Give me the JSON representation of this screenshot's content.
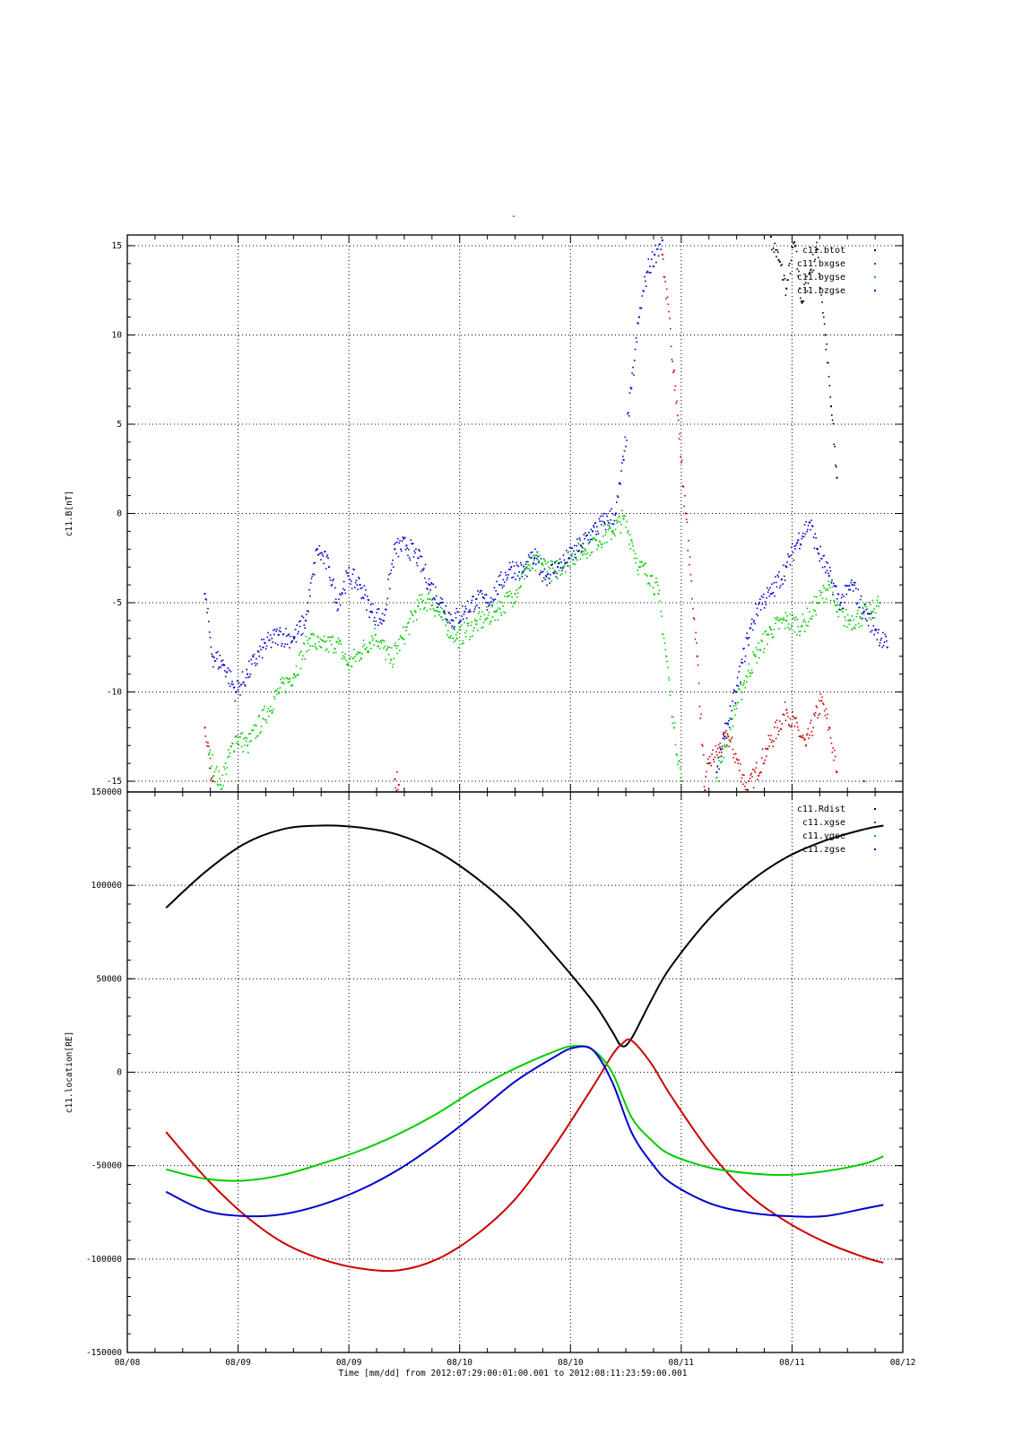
{
  "page": {
    "title_mark": "-",
    "xlabel": "Time [mm/dd]  from 2012:07:29:00:01:00.001  to  2012:08:11:23:59:00.001",
    "x_tick_labels": [
      "08/08",
      "08/09",
      "08/09",
      "08/10",
      "08/10",
      "08/11",
      "08/11",
      "08/12"
    ]
  },
  "chart_data": [
    {
      "type": "scatter",
      "ylabel": "c11.B[nT]",
      "xlim": [
        0,
        4
      ],
      "ylim": [
        -15.6,
        15.6
      ],
      "y_ticks": [
        15,
        10,
        5,
        0,
        -5,
        -10,
        -15
      ],
      "y_tick_labels": [
        "15",
        "10",
        "5",
        "0",
        "-5",
        "-10",
        "-15"
      ],
      "grid": true,
      "legend_position": "top-right",
      "series": [
        {
          "name": "c11.btot",
          "color": "#000000",
          "points": [
            [
              3.32,
              15.5
            ],
            [
              3.36,
              14.2
            ],
            [
              3.4,
              12.6
            ],
            [
              3.44,
              15.2
            ],
            [
              3.48,
              11.8
            ],
            [
              3.52,
              13.5
            ],
            [
              3.56,
              14.8
            ],
            [
              3.6,
              10.0
            ],
            [
              3.63,
              6.0
            ],
            [
              3.66,
              2.0
            ]
          ]
        },
        {
          "name": "c11.bxgse",
          "color": "#cc0000",
          "points": [
            [
              0.4,
              -12.0
            ],
            [
              0.44,
              -15.0
            ],
            [
              1.38,
              -14.9
            ],
            [
              1.4,
              -15.2
            ],
            [
              2.76,
              14.5
            ],
            [
              2.82,
              8.0
            ],
            [
              2.88,
              0.0
            ],
            [
              2.94,
              -8.0
            ],
            [
              2.98,
              -15.5
            ],
            [
              3.0,
              -14.0
            ],
            [
              3.1,
              -12.5
            ],
            [
              3.2,
              -15.5
            ],
            [
              3.3,
              -13.2
            ],
            [
              3.4,
              -11.0
            ],
            [
              3.5,
              -13.0
            ],
            [
              3.58,
              -10.5
            ],
            [
              3.62,
              -12.0
            ],
            [
              3.66,
              -14.5
            ],
            [
              3.8,
              -15.0
            ]
          ]
        },
        {
          "name": "c11.bygse",
          "color": "#00cc00",
          "points": [
            [
              0.42,
              -13.5
            ],
            [
              0.48,
              -15.2
            ],
            [
              0.56,
              -12.5
            ],
            [
              0.62,
              -13.0
            ],
            [
              0.7,
              -11.5
            ],
            [
              0.78,
              -10.0
            ],
            [
              0.86,
              -9.0
            ],
            [
              0.94,
              -7.0
            ],
            [
              1.0,
              -7.5
            ],
            [
              1.08,
              -7.2
            ],
            [
              1.14,
              -8.5
            ],
            [
              1.2,
              -7.8
            ],
            [
              1.28,
              -6.8
            ],
            [
              1.36,
              -8.2
            ],
            [
              1.42,
              -7.0
            ],
            [
              1.5,
              -5.2
            ],
            [
              1.56,
              -4.8
            ],
            [
              1.62,
              -5.8
            ],
            [
              1.7,
              -7.0
            ],
            [
              1.8,
              -6.2
            ],
            [
              1.9,
              -5.5
            ],
            [
              2.0,
              -4.5
            ],
            [
              2.06,
              -3.0
            ],
            [
              2.14,
              -2.8
            ],
            [
              2.2,
              -3.3
            ],
            [
              2.28,
              -2.5
            ],
            [
              2.36,
              -2.0
            ],
            [
              2.42,
              -1.5
            ],
            [
              2.5,
              -1.0
            ],
            [
              2.56,
              -0.3
            ],
            [
              2.6,
              -1.5
            ],
            [
              2.64,
              -3.0
            ],
            [
              2.7,
              -3.5
            ],
            [
              2.74,
              -4.5
            ],
            [
              2.78,
              -8.0
            ],
            [
              2.82,
              -12.0
            ],
            [
              2.86,
              -15.0
            ],
            [
              3.04,
              -14.8
            ],
            [
              3.08,
              -13.0
            ],
            [
              3.12,
              -11.5
            ],
            [
              3.18,
              -9.5
            ],
            [
              3.24,
              -8.0
            ],
            [
              3.32,
              -6.5
            ],
            [
              3.4,
              -6.0
            ],
            [
              3.48,
              -6.3
            ],
            [
              3.56,
              -5.0
            ],
            [
              3.62,
              -4.0
            ],
            [
              3.66,
              -5.5
            ],
            [
              3.72,
              -6.0
            ],
            [
              3.78,
              -5.8
            ],
            [
              3.84,
              -5.5
            ],
            [
              3.88,
              -5.0
            ]
          ]
        },
        {
          "name": "c11.bzgse",
          "color": "#0000cc",
          "points": [
            [
              0.4,
              -4.5
            ],
            [
              0.44,
              -8.0
            ],
            [
              0.5,
              -8.5
            ],
            [
              0.56,
              -10.0
            ],
            [
              0.62,
              -9.0
            ],
            [
              0.7,
              -7.5
            ],
            [
              0.78,
              -6.8
            ],
            [
              0.86,
              -7.0
            ],
            [
              0.92,
              -6.0
            ],
            [
              0.98,
              -2.0
            ],
            [
              1.04,
              -3.0
            ],
            [
              1.08,
              -5.0
            ],
            [
              1.14,
              -3.5
            ],
            [
              1.2,
              -4.0
            ],
            [
              1.26,
              -5.5
            ],
            [
              1.32,
              -6.0
            ],
            [
              1.38,
              -2.0
            ],
            [
              1.44,
              -1.8
            ],
            [
              1.5,
              -2.5
            ],
            [
              1.56,
              -4.0
            ],
            [
              1.62,
              -5.0
            ],
            [
              1.68,
              -6.0
            ],
            [
              1.74,
              -5.5
            ],
            [
              1.8,
              -4.8
            ],
            [
              1.86,
              -5.0
            ],
            [
              1.92,
              -4.0
            ],
            [
              1.98,
              -3.0
            ],
            [
              2.04,
              -3.3
            ],
            [
              2.1,
              -2.5
            ],
            [
              2.16,
              -3.5
            ],
            [
              2.22,
              -3.0
            ],
            [
              2.28,
              -2.5
            ],
            [
              2.34,
              -1.8
            ],
            [
              2.4,
              -1.0
            ],
            [
              2.46,
              -0.5
            ],
            [
              2.52,
              0.0
            ],
            [
              2.56,
              3.0
            ],
            [
              2.6,
              7.0
            ],
            [
              2.64,
              11.0
            ],
            [
              2.68,
              13.5
            ],
            [
              2.72,
              14.5
            ],
            [
              2.76,
              15.3
            ],
            [
              3.04,
              -14.5
            ],
            [
              3.08,
              -12.5
            ],
            [
              3.14,
              -10.0
            ],
            [
              3.2,
              -7.0
            ],
            [
              3.26,
              -5.0
            ],
            [
              3.32,
              -4.5
            ],
            [
              3.4,
              -3.0
            ],
            [
              3.46,
              -1.5
            ],
            [
              3.52,
              -0.5
            ],
            [
              3.56,
              -2.0
            ],
            [
              3.62,
              -3.5
            ],
            [
              3.68,
              -5.0
            ],
            [
              3.74,
              -4.0
            ],
            [
              3.8,
              -5.5
            ],
            [
              3.86,
              -6.5
            ],
            [
              3.92,
              -7.5
            ]
          ]
        }
      ]
    },
    {
      "type": "line",
      "ylabel": "c11.location[RE]",
      "xlim": [
        0,
        4
      ],
      "ylim": [
        -150000,
        150000
      ],
      "y_ticks": [
        150000,
        100000,
        50000,
        0,
        -50000,
        -100000,
        -150000
      ],
      "y_tick_labels": [
        "150000",
        "100000",
        "50000",
        "0",
        "-50000",
        "-100000",
        "-150000"
      ],
      "grid": true,
      "legend_position": "top-right",
      "series": [
        {
          "name": "c11.Rdist",
          "color": "#000000",
          "points": [
            [
              0.2,
              88000
            ],
            [
              0.4,
              107000
            ],
            [
              0.6,
              122000
            ],
            [
              0.8,
              130000
            ],
            [
              1.0,
              132000
            ],
            [
              1.2,
              131000
            ],
            [
              1.4,
              127000
            ],
            [
              1.6,
              118000
            ],
            [
              1.8,
              104000
            ],
            [
              2.0,
              86000
            ],
            [
              2.2,
              63000
            ],
            [
              2.4,
              38000
            ],
            [
              2.5,
              22000
            ],
            [
              2.55,
              14000
            ],
            [
              2.6,
              18000
            ],
            [
              2.7,
              38000
            ],
            [
              2.8,
              56000
            ],
            [
              3.0,
              82000
            ],
            [
              3.2,
              101000
            ],
            [
              3.4,
              115000
            ],
            [
              3.6,
              124000
            ],
            [
              3.8,
              130000
            ],
            [
              3.9,
              132000
            ]
          ]
        },
        {
          "name": "c11.xgse",
          "color": "#cc0000",
          "points": [
            [
              0.2,
              -32000
            ],
            [
              0.4,
              -56000
            ],
            [
              0.6,
              -76000
            ],
            [
              0.8,
              -91000
            ],
            [
              1.0,
              -100000
            ],
            [
              1.2,
              -105000
            ],
            [
              1.4,
              -106000
            ],
            [
              1.6,
              -100000
            ],
            [
              1.8,
              -87000
            ],
            [
              2.0,
              -68000
            ],
            [
              2.2,
              -40000
            ],
            [
              2.4,
              -8000
            ],
            [
              2.5,
              9000
            ],
            [
              2.55,
              15000
            ],
            [
              2.6,
              17000
            ],
            [
              2.7,
              5000
            ],
            [
              2.8,
              -12000
            ],
            [
              3.0,
              -42000
            ],
            [
              3.2,
              -65000
            ],
            [
              3.4,
              -80000
            ],
            [
              3.6,
              -91000
            ],
            [
              3.8,
              -99000
            ],
            [
              3.9,
              -102000
            ]
          ]
        },
        {
          "name": "c11.ygse",
          "color": "#00cc00",
          "points": [
            [
              0.2,
              -52000
            ],
            [
              0.4,
              -57000
            ],
            [
              0.6,
              -58000
            ],
            [
              0.8,
              -55000
            ],
            [
              1.0,
              -49000
            ],
            [
              1.2,
              -42000
            ],
            [
              1.4,
              -33000
            ],
            [
              1.6,
              -22000
            ],
            [
              1.8,
              -9000
            ],
            [
              2.0,
              2000
            ],
            [
              2.2,
              11000
            ],
            [
              2.3,
              14000
            ],
            [
              2.4,
              12000
            ],
            [
              2.5,
              0
            ],
            [
              2.6,
              -24000
            ],
            [
              2.7,
              -36000
            ],
            [
              2.8,
              -44000
            ],
            [
              3.0,
              -51000
            ],
            [
              3.2,
              -54000
            ],
            [
              3.4,
              -55000
            ],
            [
              3.6,
              -53000
            ],
            [
              3.8,
              -49000
            ],
            [
              3.9,
              -45000
            ]
          ]
        },
        {
          "name": "c11.zgse",
          "color": "#0000cc",
          "points": [
            [
              0.2,
              -64000
            ],
            [
              0.4,
              -74000
            ],
            [
              0.6,
              -77000
            ],
            [
              0.8,
              -76000
            ],
            [
              1.0,
              -71000
            ],
            [
              1.2,
              -63000
            ],
            [
              1.4,
              -52000
            ],
            [
              1.6,
              -38000
            ],
            [
              1.8,
              -22000
            ],
            [
              2.0,
              -5000
            ],
            [
              2.2,
              8000
            ],
            [
              2.3,
              13000
            ],
            [
              2.4,
              12000
            ],
            [
              2.5,
              -5000
            ],
            [
              2.6,
              -32000
            ],
            [
              2.7,
              -48000
            ],
            [
              2.8,
              -59000
            ],
            [
              3.0,
              -70000
            ],
            [
              3.2,
              -75000
            ],
            [
              3.4,
              -77000
            ],
            [
              3.6,
              -77000
            ],
            [
              3.8,
              -73000
            ],
            [
              3.9,
              -71000
            ]
          ]
        }
      ]
    }
  ]
}
